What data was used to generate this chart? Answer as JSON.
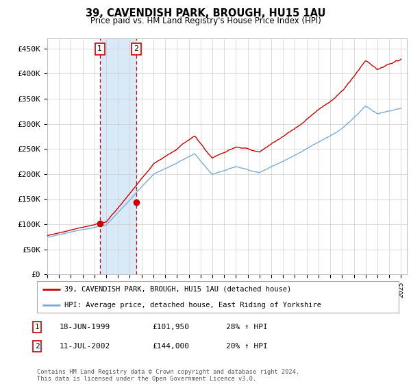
{
  "title": "39, CAVENDISH PARK, BROUGH, HU15 1AU",
  "subtitle": "Price paid vs. HM Land Registry's House Price Index (HPI)",
  "ylabel_ticks": [
    "£0",
    "£50K",
    "£100K",
    "£150K",
    "£200K",
    "£250K",
    "£300K",
    "£350K",
    "£400K",
    "£450K"
  ],
  "ytick_values": [
    0,
    50000,
    100000,
    150000,
    200000,
    250000,
    300000,
    350000,
    400000,
    450000
  ],
  "ylim": [
    0,
    470000
  ],
  "xlim_start": 1995.0,
  "xlim_end": 2025.5,
  "hpi_color": "#7aabdb",
  "price_color": "#cc0000",
  "marker1_date": 1999.46,
  "marker1_price": 101950,
  "marker2_date": 2002.53,
  "marker2_price": 144000,
  "shade_color": "#d8eaf8",
  "vline_color": "#cc0000",
  "legend_line1": "39, CAVENDISH PARK, BROUGH, HU15 1AU (detached house)",
  "legend_line2": "HPI: Average price, detached house, East Riding of Yorkshire",
  "table_row1": [
    "1",
    "18-JUN-1999",
    "£101,950",
    "28% ↑ HPI"
  ],
  "table_row2": [
    "2",
    "11-JUL-2002",
    "£144,000",
    "20% ↑ HPI"
  ],
  "footnote": "Contains HM Land Registry data © Crown copyright and database right 2024.\nThis data is licensed under the Open Government Licence v3.0.",
  "background_color": "#ffffff",
  "grid_color": "#cccccc",
  "title_fontsize": 10,
  "subtitle_fontsize": 8.5
}
